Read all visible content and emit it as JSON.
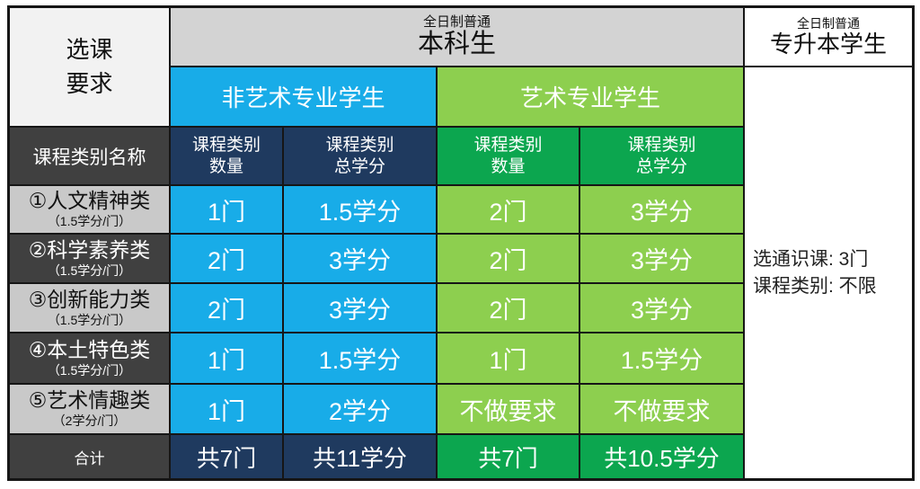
{
  "colors": {
    "non_art_blue": "#18ACE8",
    "art_light_green": "#8DCF4F",
    "art_dark_green": "#0CA64F",
    "navy_total": "#1F3A5F",
    "label_dark_gray": "#404040",
    "label_light_gray": "#C9C9C9",
    "header_gray": "#D3D3D3",
    "grid_line": "#161616"
  },
  "corner": {
    "line1": "选课",
    "line2": "要求"
  },
  "header": {
    "benke_small": "全日制普通",
    "benke_big": "本科生",
    "zsb_small": "全日制普通",
    "zsb_big": "专升本学生",
    "non_art": "非艺术专业学生",
    "art": "艺术专业学生"
  },
  "subheader": {
    "row_label": "课程类别名称",
    "count_l1": "课程类别",
    "count_l2": "数量",
    "credit_l1": "课程类别",
    "credit_l2": "总学分"
  },
  "rows": [
    {
      "label": "①人文精神类",
      "sub": "（1.5学分/门）",
      "na_count": "1门",
      "na_credit": "1.5学分",
      "art_count": "2门",
      "art_credit": "3学分"
    },
    {
      "label": "②科学素养类",
      "sub": "（1.5学分/门）",
      "na_count": "2门",
      "na_credit": "3学分",
      "art_count": "2门",
      "art_credit": "3学分"
    },
    {
      "label": "③创新能力类",
      "sub": "（1.5学分/门）",
      "na_count": "2门",
      "na_credit": "3学分",
      "art_count": "2门",
      "art_credit": "3学分"
    },
    {
      "label": "④本土特色类",
      "sub": "（1.5学分/门）",
      "na_count": "1门",
      "na_credit": "1.5学分",
      "art_count": "1门",
      "art_credit": "1.5学分"
    },
    {
      "label": "⑤艺术情趣类",
      "sub": "（2学分/门）",
      "na_count": "1门",
      "na_credit": "2学分",
      "art_count": "不做要求",
      "art_credit": "不做要求"
    }
  ],
  "total": {
    "label": "合计",
    "na_count": "共7门",
    "na_credit": "共11学分",
    "art_count": "共7门",
    "art_credit": "共10.5学分"
  },
  "note": {
    "line1": "选通识课: 3门",
    "line2": "课程类别: 不限"
  },
  "chart_data": {
    "type": "table",
    "title": "选课要求",
    "column_groups": [
      "全日制普通本科生 / 非艺术专业学生",
      "全日制普通本科生 / 艺术专业学生",
      "全日制普通专升本学生"
    ],
    "columns": [
      "课程类别名称",
      "非艺术专业学生 课程类别数量",
      "非艺术专业学生 课程类别总学分",
      "艺术专业学生 课程类别数量",
      "艺术专业学生 课程类别总学分"
    ],
    "rows": [
      [
        "①人文精神类（1.5学分/门）",
        "1门",
        "1.5学分",
        "2门",
        "3学分"
      ],
      [
        "②科学素养类（1.5学分/门）",
        "2门",
        "3学分",
        "2门",
        "3学分"
      ],
      [
        "③创新能力类（1.5学分/门）",
        "2门",
        "3学分",
        "2门",
        "3学分"
      ],
      [
        "④本土特色类（1.5学分/门）",
        "1门",
        "1.5学分",
        "1门",
        "1.5学分"
      ],
      [
        "⑤艺术情趣类（2学分/门）",
        "1门",
        "2学分",
        "不做要求",
        "不做要求"
      ],
      [
        "合计",
        "共7门",
        "共11学分",
        "共7门",
        "共10.5学分"
      ]
    ],
    "zhuanshengben_note": "选通识课: 3门；课程类别: 不限"
  }
}
